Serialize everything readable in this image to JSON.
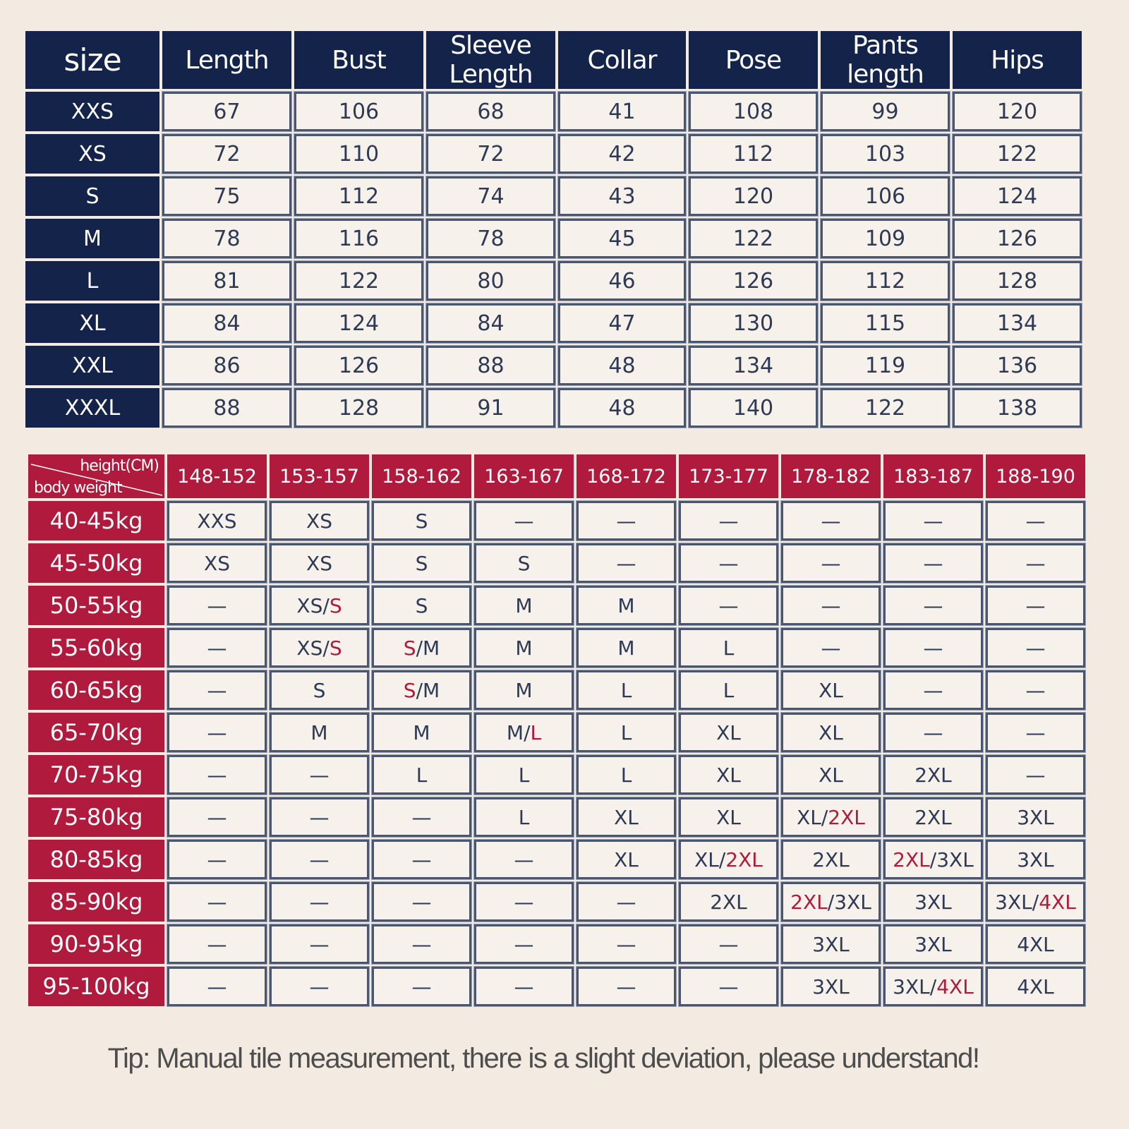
{
  "size_chart": {
    "headers": [
      "size",
      "Length",
      "Bust",
      "Sleeve Length",
      "Collar",
      "Pose",
      "Pants length",
      "Hips"
    ],
    "rows": [
      {
        "size": "XXS",
        "values": [
          "67",
          "106",
          "68",
          "41",
          "108",
          "99",
          "120"
        ]
      },
      {
        "size": "XS",
        "values": [
          "72",
          "110",
          "72",
          "42",
          "112",
          "103",
          "122"
        ]
      },
      {
        "size": "S",
        "values": [
          "75",
          "112",
          "74",
          "43",
          "120",
          "106",
          "124"
        ]
      },
      {
        "size": "M",
        "values": [
          "78",
          "116",
          "78",
          "45",
          "122",
          "109",
          "126"
        ]
      },
      {
        "size": "L",
        "values": [
          "81",
          "122",
          "80",
          "46",
          "126",
          "112",
          "128"
        ]
      },
      {
        "size": "XL",
        "values": [
          "84",
          "124",
          "84",
          "47",
          "130",
          "115",
          "134"
        ]
      },
      {
        "size": "XXL",
        "values": [
          "86",
          "126",
          "88",
          "48",
          "134",
          "119",
          "136"
        ]
      },
      {
        "size": "XXXL",
        "values": [
          "88",
          "128",
          "91",
          "48",
          "140",
          "122",
          "138"
        ]
      }
    ]
  },
  "fit_chart": {
    "corner_top": "height(CM)",
    "corner_bottom": "body weight",
    "heights": [
      "148-152",
      "153-157",
      "158-162",
      "163-167",
      "168-172",
      "173-177",
      "178-182",
      "183-187",
      "188-190"
    ],
    "rows": [
      {
        "weight": "40-45kg",
        "cells": [
          "XXS",
          "XS",
          "S",
          "—",
          "—",
          "—",
          "—",
          "—",
          "—"
        ]
      },
      {
        "weight": "45-50kg",
        "cells": [
          "XS",
          "XS",
          "S",
          "S",
          "—",
          "—",
          "—",
          "—",
          "—"
        ]
      },
      {
        "weight": "50-55kg",
        "cells": [
          "—",
          "XS/S",
          "S",
          "M",
          "M",
          "—",
          "—",
          "—",
          "—"
        ]
      },
      {
        "weight": "55-60kg",
        "cells": [
          "—",
          "XS/S",
          "S/M",
          "M",
          "M",
          "L",
          "—",
          "—",
          "—"
        ]
      },
      {
        "weight": "60-65kg",
        "cells": [
          "—",
          "S",
          "S/M",
          "M",
          "L",
          "L",
          "XL",
          "—",
          "—"
        ]
      },
      {
        "weight": "65-70kg",
        "cells": [
          "—",
          "M",
          "M",
          "M/L",
          "L",
          "XL",
          "XL",
          "—",
          "—"
        ]
      },
      {
        "weight": "70-75kg",
        "cells": [
          "—",
          "—",
          "L",
          "L",
          "L",
          "XL",
          "XL",
          "2XL",
          "—"
        ]
      },
      {
        "weight": "75-80kg",
        "cells": [
          "—",
          "—",
          "—",
          "L",
          "XL",
          "XL",
          "XL/2XL",
          "2XL",
          "3XL"
        ]
      },
      {
        "weight": "80-85kg",
        "cells": [
          "—",
          "—",
          "—",
          "—",
          "XL",
          "XL/2XL",
          "2XL",
          "2XL/3XL",
          "3XL"
        ]
      },
      {
        "weight": "85-90kg",
        "cells": [
          "—",
          "—",
          "—",
          "—",
          "—",
          "2XL",
          "2XL/3XL",
          "3XL",
          "3XL/4XL"
        ]
      },
      {
        "weight": "90-95kg",
        "cells": [
          "—",
          "—",
          "—",
          "—",
          "—",
          "—",
          "3XL",
          "3XL",
          "4XL"
        ]
      },
      {
        "weight": "95-100kg",
        "cells": [
          "—",
          "—",
          "—",
          "—",
          "—",
          "—",
          "3XL",
          "3XL/4XL",
          "4XL"
        ]
      }
    ],
    "red_sizes": [
      "XXS",
      "S",
      "L",
      "2XL",
      "4XL"
    ]
  },
  "tip": "Tip: Manual tile measurement, there is a slight deviation, please understand!",
  "colors": {
    "background": "#f3ebe1",
    "navy_header": "#13234a",
    "crimson_header": "#b01a3c",
    "cell_text": "#2e3a55",
    "red_text": "#b01a3c"
  }
}
